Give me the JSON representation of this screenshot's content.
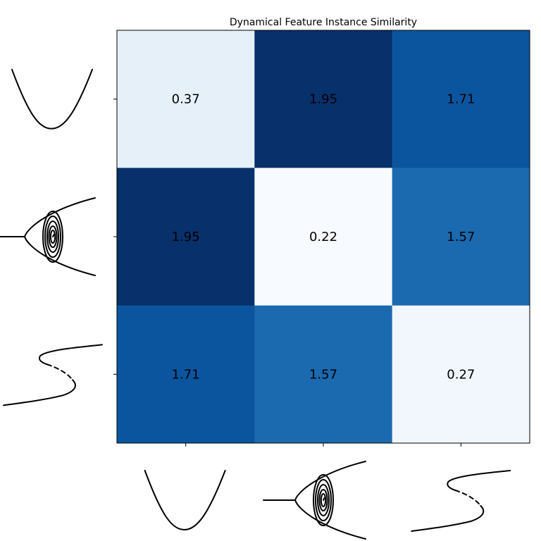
{
  "chart_data": {
    "type": "heatmap",
    "title": "Dynamical Feature Instance Similarity",
    "row_labels": [
      "parabola-icon",
      "spiral-bifurcation-icon",
      "s-curve-hysteresis-icon"
    ],
    "col_labels": [
      "parabola-icon",
      "spiral-bifurcation-icon",
      "s-curve-hysteresis-icon"
    ],
    "values": [
      [
        0.37,
        1.95,
        1.71
      ],
      [
        1.95,
        0.22,
        1.57
      ],
      [
        1.71,
        1.57,
        0.27
      ]
    ],
    "value_labels": [
      [
        "0.37",
        "1.95",
        "1.71"
      ],
      [
        "1.95",
        "0.22",
        "1.57"
      ],
      [
        "1.71",
        "1.57",
        "0.27"
      ]
    ],
    "colormap": "Blues",
    "vrange": [
      0.22,
      1.95
    ],
    "grid": false,
    "colors": {
      "low": "#f7fbff",
      "high": "#08306b"
    }
  }
}
